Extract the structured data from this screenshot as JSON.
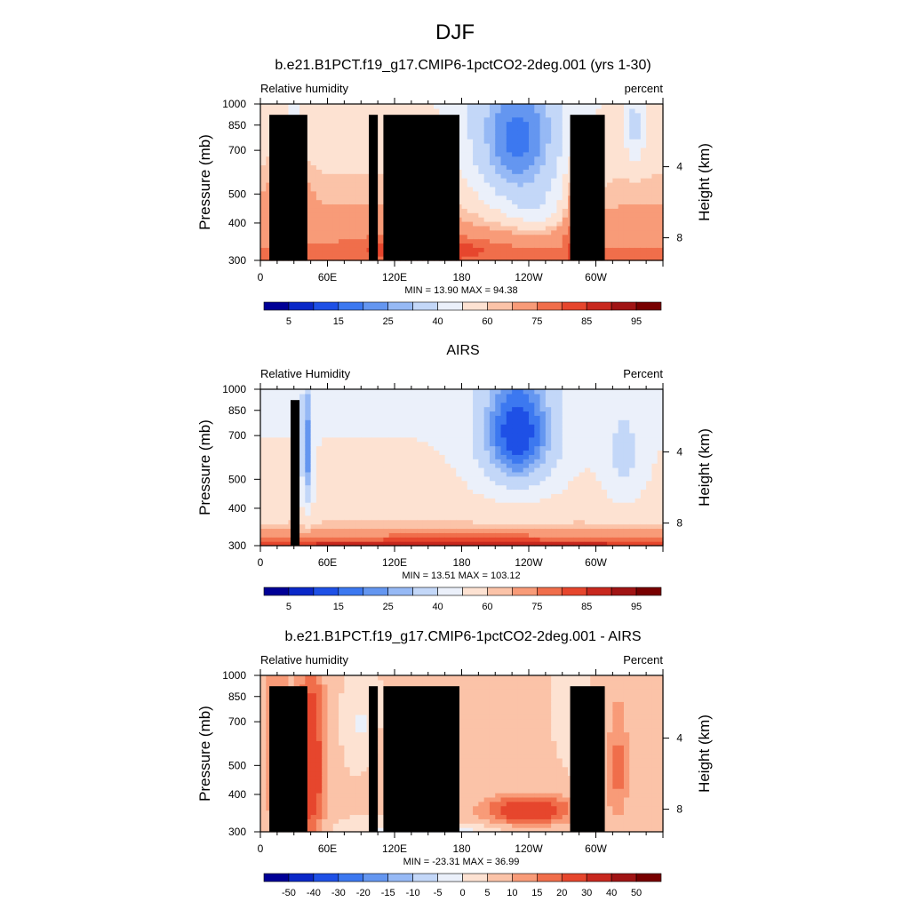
{
  "figure_title": "DJF",
  "colors": {
    "rh_scale": [
      "#000096",
      "#0a28c8",
      "#1e50e6",
      "#3c78f0",
      "#6496f0",
      "#96b9f5",
      "#c3d7f8",
      "#ebf0fa",
      "#fde2d2",
      "#fbc3a8",
      "#f89b78",
      "#f06e4b",
      "#e6462d",
      "#c8281e",
      "#a01414",
      "#780000"
    ],
    "diff_scale": [
      "#000096",
      "#0a28c8",
      "#1e50e6",
      "#3c78f0",
      "#6496f0",
      "#96b9f5",
      "#c3d7f8",
      "#ebf0fa",
      "#fde2d2",
      "#fbc3a8",
      "#f89b78",
      "#f06e4b",
      "#e6462d",
      "#c8281e",
      "#a01414",
      "#780000"
    ],
    "topography": "#000000"
  },
  "panels": [
    {
      "title": "b.e21.B1PCT.f19_g17.CMIP6-1pctCO2-2deg.001 (yrs 1-30)",
      "left_label": "Relative humidity",
      "right_label": "percent",
      "stats": "MIN =  13.90  MAX =  94.38",
      "colorbar_labels": [
        "5",
        "15",
        "25",
        "40",
        "60",
        "75",
        "85",
        "95"
      ]
    },
    {
      "title": "AIRS",
      "left_label": "Relative Humidity",
      "right_label": "Percent",
      "stats": "MIN =  13.51  MAX = 103.12",
      "colorbar_labels": [
        "5",
        "15",
        "25",
        "40",
        "60",
        "75",
        "85",
        "95"
      ]
    },
    {
      "title": "b.e21.B1PCT.f19_g17.CMIP6-1pctCO2-2deg.001 - AIRS",
      "left_label": "Relative humidity",
      "right_label": "Percent",
      "stats": "MIN = -23.31  MAX =  36.99",
      "colorbar_labels": [
        "-50",
        "-40",
        "-30",
        "-20",
        "-15",
        "-10",
        "-5",
        "0",
        "5",
        "10",
        "15",
        "20",
        "30",
        "40",
        "50"
      ]
    }
  ],
  "chart_data": [
    {
      "type": "heatmap",
      "title": "b.e21.B1PCT.f19_g17.CMIP6-1pctCO2-2deg.001 (yrs 1-30)",
      "ylabel": "Pressure (mb)",
      "y2label": "Height (km)",
      "x_ticks": [
        "0",
        "60E",
        "120E",
        "180",
        "120W",
        "60W"
      ],
      "y_ticks": [
        "300",
        "400",
        "500",
        "700",
        "850",
        "1000"
      ],
      "y2_ticks": [
        "8",
        "4"
      ],
      "xlim": [
        0,
        360
      ],
      "ylim": [
        1000,
        300
      ],
      "y_scale": "log",
      "levels": [
        5,
        10,
        15,
        20,
        25,
        30,
        40,
        50,
        60,
        65,
        75,
        80,
        85,
        90,
        95
      ],
      "min": 13.9,
      "max": 94.38
    },
    {
      "type": "heatmap",
      "title": "AIRS",
      "ylabel": "Pressure (mb)",
      "y2label": "Height (km)",
      "x_ticks": [
        "0",
        "60E",
        "120E",
        "180",
        "120W",
        "60W"
      ],
      "y_ticks": [
        "300",
        "400",
        "500",
        "700",
        "850",
        "1000"
      ],
      "y2_ticks": [
        "8",
        "4"
      ],
      "xlim": [
        0,
        360
      ],
      "ylim": [
        1000,
        300
      ],
      "y_scale": "log",
      "levels": [
        5,
        10,
        15,
        20,
        25,
        30,
        40,
        50,
        60,
        65,
        75,
        80,
        85,
        90,
        95
      ],
      "min": 13.51,
      "max": 103.12
    },
    {
      "type": "heatmap",
      "title": "b.e21.B1PCT.f19_g17.CMIP6-1pctCO2-2deg.001 - AIRS",
      "ylabel": "Pressure (mb)",
      "y2label": "Height (km)",
      "x_ticks": [
        "0",
        "60E",
        "120E",
        "180",
        "120W",
        "60W"
      ],
      "y_ticks": [
        "300",
        "400",
        "500",
        "700",
        "850",
        "1000"
      ],
      "y2_ticks": [
        "8",
        "4"
      ],
      "xlim": [
        0,
        360
      ],
      "ylim": [
        1000,
        300
      ],
      "y_scale": "log",
      "levels": [
        -50,
        -40,
        -30,
        -20,
        -15,
        -10,
        -5,
        0,
        5,
        10,
        15,
        20,
        30,
        40,
        50
      ],
      "min": -23.31,
      "max": 36.99
    }
  ]
}
